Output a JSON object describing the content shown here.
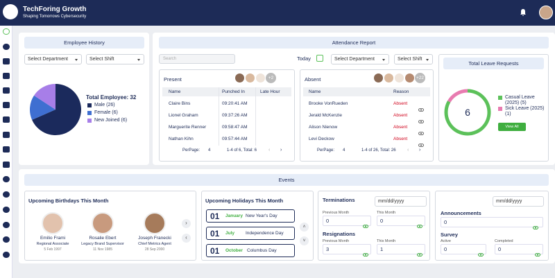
{
  "header": {
    "title": "TechForing Growth",
    "subtitle": "Shaping Tomorrows Cybersecurity"
  },
  "employee_history": {
    "title": "Employee History",
    "department_filter": "Select Department",
    "shift_filter": "Select Shift",
    "total": "Total Employee: 32",
    "chart_data": {
      "type": "pie",
      "categories": [
        "Male (26)",
        "Female (6)",
        "New Joined (6)"
      ],
      "values": [
        26,
        6,
        6
      ],
      "colors": [
        "#1b2a5c",
        "#3f6fd1",
        "#a77ee8"
      ]
    }
  },
  "attendance": {
    "title": "Attendance Report",
    "search_placeholder": "Search",
    "today": "Today",
    "department_filter": "Select Department",
    "shift_filter": "Select Shift",
    "present": {
      "title": "Present",
      "more_count": "+2",
      "columns": [
        "Name",
        "Punched In",
        "Late Hour"
      ],
      "rows": [
        [
          "Claire Bins",
          "09:20:41 AM"
        ],
        [
          "Lionel Graham",
          "09:37:26 AM"
        ],
        [
          "Marguerite Renner",
          "09:58:47 AM"
        ],
        [
          "Nathan Kihn",
          "09:57:44 AM"
        ]
      ],
      "per_page_label": "PerPage:",
      "per_page": 4,
      "range": "1-4 of 6, Total: 6"
    },
    "absent": {
      "title": "Absent",
      "more_count": "+22",
      "columns": [
        "Name",
        "Reason"
      ],
      "rows": [
        [
          "Brooke VonRueden",
          "Absent"
        ],
        [
          "Jerald McKenzie",
          "Absent"
        ],
        [
          "Alison Nienow",
          "Absent"
        ],
        [
          "Levi Deckow",
          "Absent"
        ]
      ],
      "per_page_label": "PerPage:",
      "per_page": 4,
      "range": "1-4 of 26, Total: 26"
    }
  },
  "leave_requests": {
    "title": "Total Leave Requests",
    "button": "View All",
    "chart_data": {
      "type": "donut",
      "total": 6,
      "categories": [
        "Casual Leave (2025) (5)",
        "Sick Leave (2025) (1)"
      ],
      "values": [
        5,
        1
      ],
      "colors": [
        "#5cc15a",
        "#e87bb0"
      ]
    }
  },
  "events": {
    "title": "Events",
    "birthdays": {
      "title": "Upcoming Birthdays This Month",
      "people": [
        {
          "name": "Emilio Frami",
          "role": "Regional Associate",
          "date": "5 Feb 1997"
        },
        {
          "name": "Rosalie Ebert",
          "role": "Legacy Brand Supervisor",
          "date": "11 Nov 1985"
        },
        {
          "name": "Joseph Franecki",
          "role": "Chief Metrics Agent",
          "date": "28 Sep 2000"
        }
      ]
    },
    "holidays": {
      "title": "Upcoming Holidays This Month",
      "items": [
        {
          "day": "01",
          "month": "January",
          "name": "New Year's Day"
        },
        {
          "day": "01",
          "month": "July",
          "name": "Independence Day"
        },
        {
          "day": "01",
          "month": "October",
          "name": "Columbus Day"
        }
      ]
    },
    "terminations": {
      "title": "Terminations",
      "date_placeholder": "mm/dd/yyyy",
      "previous_month_label": "Previous Month",
      "previous_month": 0,
      "this_month_label": "This Month",
      "this_month": 0
    },
    "resignations": {
      "title": "Resignations",
      "previous_month_label": "Previous Month",
      "previous_month": 3,
      "this_month_label": "This Month",
      "this_month": 1
    },
    "announcements": {
      "date_placeholder": "mm/dd/yyyy",
      "title": "Announcements",
      "count": 0
    },
    "survey": {
      "title": "Survey",
      "active_label": "Active",
      "active": 0,
      "completed_label": "Completed",
      "completed": 0
    }
  }
}
